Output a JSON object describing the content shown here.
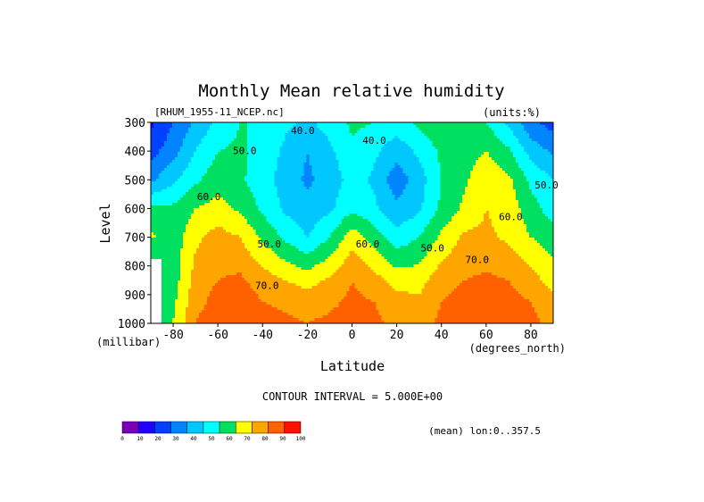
{
  "chart_data": {
    "type": "heatmap",
    "title": "Monthly Mean relative humidity",
    "subtitle_left": "[RHUM_1955-11_NCEP.nc]",
    "subtitle_right": "(units:%)",
    "xlabel": "Latitude",
    "ylabel": "Level",
    "x_units": "(degrees_north)",
    "y_units": "(millibar)",
    "xlim": [
      -90,
      90
    ],
    "ylim": [
      1000,
      300
    ],
    "x_ticks": [
      -80,
      -60,
      -40,
      -20,
      0,
      20,
      40,
      60,
      80
    ],
    "x_tick_labels": [
      "-80",
      "-60",
      "-40",
      "-20",
      "0",
      "20",
      "40",
      "60",
      "80"
    ],
    "y_ticks": [
      300,
      400,
      500,
      600,
      700,
      800,
      900,
      1000
    ],
    "y_tick_labels": [
      "300",
      "400",
      "500",
      "600",
      "700",
      "800",
      "900",
      "1000"
    ],
    "contour_interval_text": "CONTOUR INTERVAL = 5.000E+00",
    "footer_right": "(mean) lon:0..357.5",
    "contour_labels": [
      {
        "text": "40.0",
        "x": -22,
        "y": 340
      },
      {
        "text": "40.0",
        "x": 10,
        "y": 375
      },
      {
        "text": "50.0",
        "x": -48,
        "y": 410
      },
      {
        "text": "50.0",
        "x": 87,
        "y": 530
      },
      {
        "text": "50.0",
        "x": -37,
        "y": 735
      },
      {
        "text": "50.0",
        "x": 36,
        "y": 750
      },
      {
        "text": "60.0",
        "x": -64,
        "y": 570
      },
      {
        "text": "60.0",
        "x": 7,
        "y": 735
      },
      {
        "text": "60.0",
        "x": 71,
        "y": 640
      },
      {
        "text": "70.0",
        "x": 56,
        "y": 790
      },
      {
        "text": "70.0",
        "x": -38,
        "y": 880
      }
    ],
    "colorbar": {
      "colors": [
        "#7a00b8",
        "#1f00ff",
        "#0040ff",
        "#0085ff",
        "#00c8ff",
        "#00ffff",
        "#00e060",
        "#ffff00",
        "#ffa500",
        "#ff6000",
        "#ff1000"
      ],
      "labels": [
        "0",
        "10",
        "20",
        "30",
        "40",
        "50",
        "60",
        "70",
        "80",
        "90",
        "100"
      ]
    },
    "fill_levels": [
      0,
      10,
      20,
      30,
      40,
      50,
      60,
      70,
      80,
      90
    ],
    "level_colors": [
      "#7a00b8",
      "#1f00ff",
      "#0040ff",
      "#0085ff",
      "#00c8ff",
      "#00ffff",
      "#00e060",
      "#ffff00",
      "#ffa500",
      "#ff6000",
      "#ff1000"
    ],
    "latitudes": [
      -90,
      -80,
      -70,
      -60,
      -50,
      -40,
      -30,
      -20,
      -10,
      0,
      10,
      20,
      30,
      40,
      50,
      60,
      70,
      80,
      90
    ],
    "levels": [
      1000,
      925,
      850,
      700,
      600,
      500,
      400,
      300
    ],
    "values": [
      [
        null,
        60,
        80,
        88,
        88,
        84,
        82,
        80,
        82,
        84,
        82,
        78,
        76,
        82,
        85,
        88,
        85,
        82,
        78
      ],
      [
        null,
        58,
        76,
        84,
        86,
        80,
        78,
        76,
        78,
        82,
        80,
        74,
        72,
        80,
        84,
        86,
        83,
        80,
        74
      ],
      [
        null,
        55,
        74,
        80,
        82,
        75,
        70,
        66,
        72,
        80,
        74,
        66,
        66,
        76,
        80,
        82,
        80,
        74,
        66
      ],
      [
        62,
        54,
        68,
        74,
        70,
        58,
        48,
        40,
        50,
        66,
        55,
        44,
        50,
        62,
        72,
        72,
        68,
        60,
        55
      ],
      [
        52,
        52,
        60,
        64,
        58,
        48,
        38,
        33,
        38,
        48,
        42,
        32,
        38,
        52,
        62,
        70,
        66,
        54,
        45
      ],
      [
        28,
        38,
        48,
        56,
        52,
        44,
        36,
        28,
        34,
        44,
        38,
        24,
        35,
        50,
        58,
        68,
        62,
        48,
        40
      ],
      [
        16,
        26,
        40,
        50,
        52,
        46,
        38,
        30,
        38,
        48,
        42,
        34,
        42,
        52,
        56,
        60,
        52,
        36,
        28
      ],
      [
        8,
        20,
        32,
        42,
        50,
        50,
        42,
        38,
        44,
        52,
        50,
        45,
        52,
        58,
        55,
        50,
        38,
        22,
        16
      ]
    ]
  }
}
